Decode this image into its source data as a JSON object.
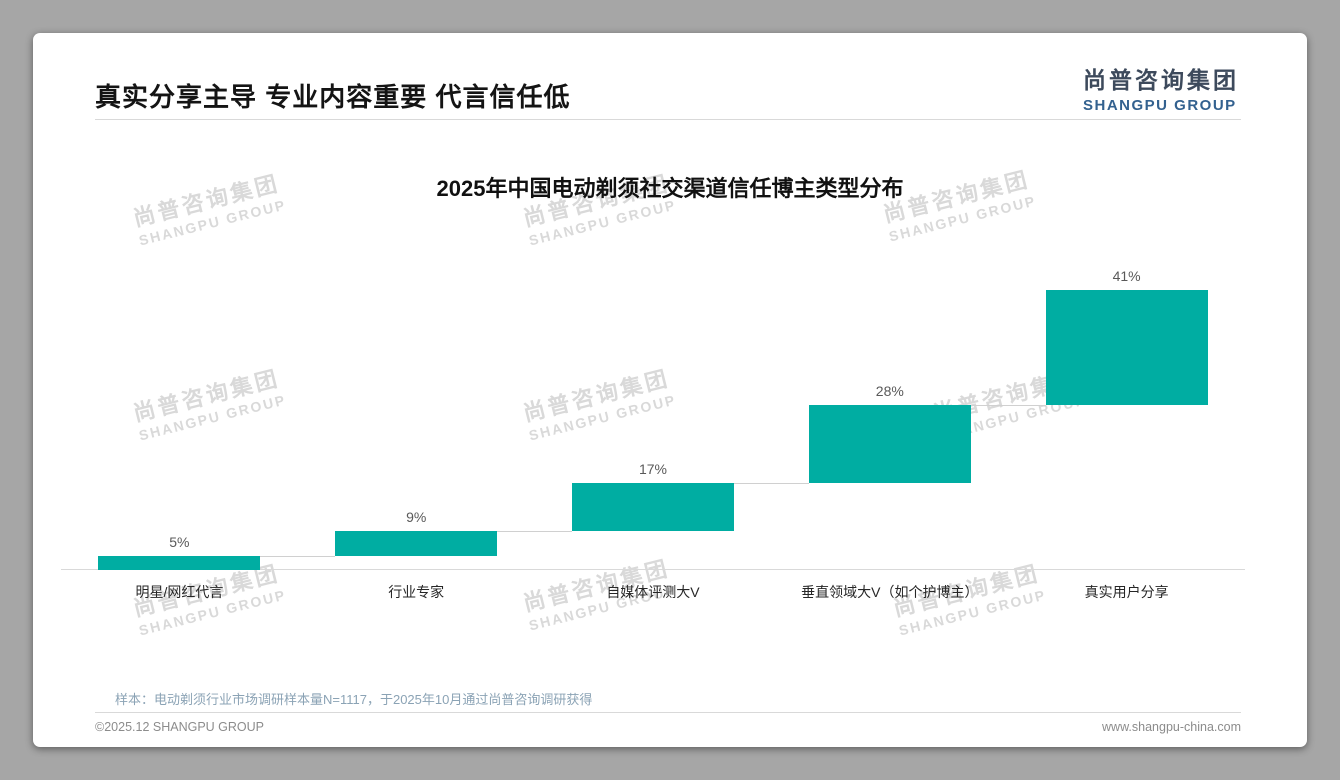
{
  "page": {
    "header": {
      "title": "真实分享主导 专业内容重要 代言信任低",
      "logo_cn": "尚普咨询集团",
      "logo_en": "SHANGPU GROUP"
    },
    "watermark": {
      "line1": "尚普咨询集团",
      "line2": "SHANGPU GROUP"
    },
    "footer": {
      "sample_note": "样本：电动剃须行业市场调研样本量N=1117，于2025年10月通过尚普咨询调研获得",
      "copyright": "©2025.12 SHANGPU GROUP",
      "website": "www.shangpu-china.com"
    }
  },
  "chart_data": {
    "type": "bar",
    "subtype": "waterfall",
    "title": "2025年中国电动剃须社交渠道信任博主类型分布",
    "categories": [
      "明星/网红代言",
      "行业专家",
      "自媒体评测大V",
      "垂直领域大V（如个护博主）",
      "真实用户分享"
    ],
    "values": [
      5,
      9,
      17,
      28,
      41
    ],
    "value_labels": [
      "5%",
      "9%",
      "17%",
      "28%",
      "41%"
    ],
    "unit": "%",
    "ylim": [
      0,
      100
    ],
    "bar_color": "#00ADA2",
    "grid": false,
    "legend": false,
    "note": "cumulative waterfall bars rising left to right, connector lines between steps"
  }
}
